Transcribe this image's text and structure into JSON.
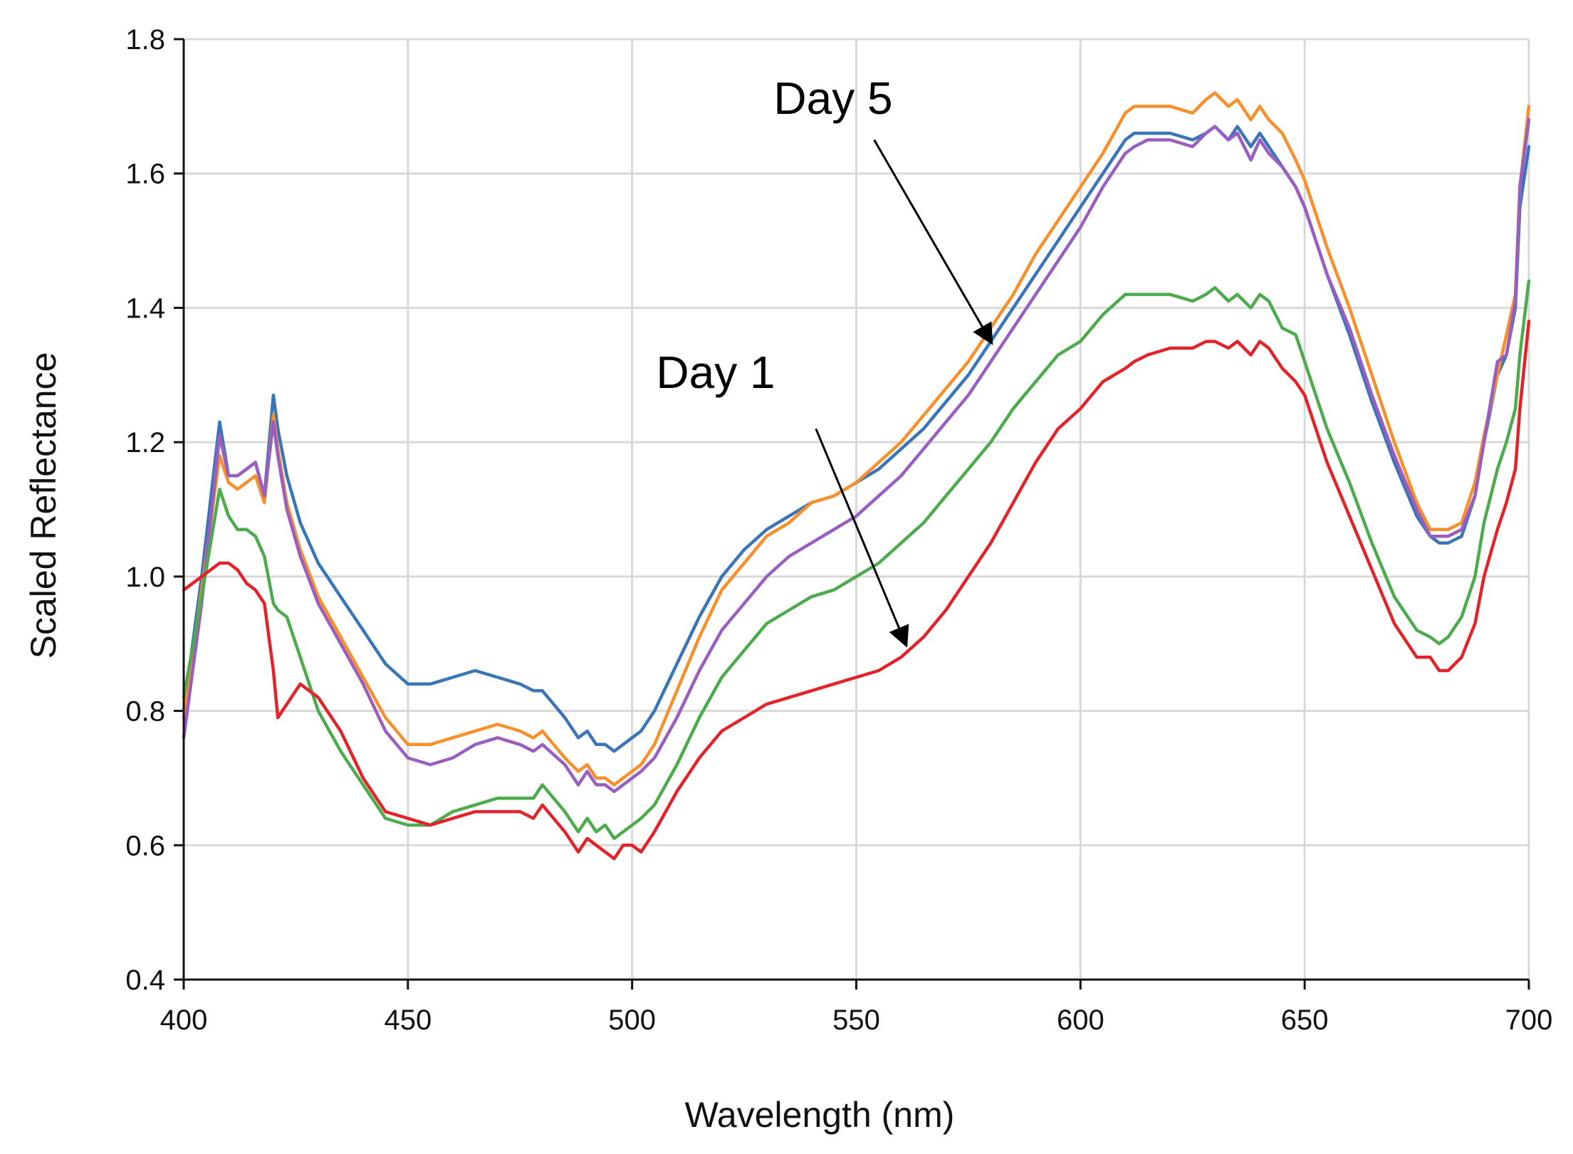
{
  "chart_data": {
    "type": "line",
    "title": "",
    "xlabel": "Wavelength (nm)",
    "ylabel": "Scaled Reflectance",
    "xlim": [
      400,
      700
    ],
    "ylim": [
      0.4,
      1.8
    ],
    "xticks": [
      400,
      450,
      500,
      550,
      600,
      650,
      700
    ],
    "yticks": [
      0.4,
      0.6,
      0.8,
      1.0,
      1.2,
      1.4,
      1.6,
      1.8
    ],
    "ytick_labels": [
      "0.4",
      "0.6",
      "0.8",
      "1.0",
      "1.2",
      "1.4",
      "1.6",
      "1.8"
    ],
    "grid": true,
    "legend": "none",
    "annotations": [
      {
        "text": "Day 5",
        "x_from": 554,
        "y_from": 1.65,
        "x_to": 580,
        "y_to": 1.35
      },
      {
        "text": "Day 1",
        "x_from": 541,
        "y_from": 1.22,
        "x_to": 561,
        "y_to": 0.9
      }
    ],
    "series": [
      {
        "name": "blue",
        "color": "#3a75b8",
        "x": [
          400,
          404,
          408,
          410,
          412,
          414,
          416,
          418,
          420,
          421,
          423,
          426,
          430,
          435,
          440,
          445,
          450,
          455,
          460,
          465,
          470,
          475,
          478,
          480,
          485,
          488,
          490,
          492,
          494,
          496,
          498,
          500,
          502,
          505,
          510,
          515,
          520,
          525,
          530,
          535,
          540,
          545,
          550,
          555,
          560,
          565,
          570,
          575,
          580,
          585,
          590,
          595,
          600,
          605,
          610,
          612,
          615,
          620,
          625,
          628,
          630,
          633,
          635,
          638,
          640,
          642,
          645,
          648,
          650,
          655,
          660,
          665,
          670,
          675,
          678,
          680,
          682,
          685,
          688,
          690,
          693,
          695,
          697,
          698,
          700
        ],
        "y": [
          0.8,
          1.0,
          1.23,
          1.15,
          1.15,
          1.16,
          1.17,
          1.12,
          1.27,
          1.22,
          1.15,
          1.08,
          1.02,
          0.97,
          0.92,
          0.87,
          0.84,
          0.84,
          0.85,
          0.86,
          0.85,
          0.84,
          0.83,
          0.83,
          0.79,
          0.76,
          0.77,
          0.75,
          0.75,
          0.74,
          0.75,
          0.76,
          0.77,
          0.8,
          0.87,
          0.94,
          1.0,
          1.04,
          1.07,
          1.09,
          1.11,
          1.12,
          1.14,
          1.16,
          1.19,
          1.22,
          1.26,
          1.3,
          1.35,
          1.4,
          1.45,
          1.5,
          1.55,
          1.6,
          1.65,
          1.66,
          1.66,
          1.66,
          1.65,
          1.66,
          1.67,
          1.65,
          1.67,
          1.64,
          1.66,
          1.64,
          1.61,
          1.58,
          1.55,
          1.45,
          1.36,
          1.26,
          1.17,
          1.09,
          1.06,
          1.05,
          1.05,
          1.06,
          1.12,
          1.2,
          1.3,
          1.33,
          1.4,
          1.55,
          1.64
        ]
      },
      {
        "name": "orange",
        "color": "#f7902b",
        "x": [
          400,
          404,
          408,
          410,
          412,
          414,
          416,
          418,
          420,
          421,
          423,
          426,
          430,
          435,
          440,
          445,
          450,
          455,
          460,
          465,
          470,
          475,
          478,
          480,
          485,
          488,
          490,
          492,
          494,
          496,
          498,
          500,
          502,
          505,
          510,
          515,
          520,
          525,
          530,
          535,
          540,
          545,
          550,
          555,
          560,
          565,
          570,
          575,
          580,
          585,
          590,
          595,
          600,
          605,
          610,
          612,
          615,
          620,
          625,
          628,
          630,
          633,
          635,
          638,
          640,
          642,
          645,
          648,
          650,
          655,
          660,
          665,
          670,
          675,
          678,
          680,
          682,
          685,
          688,
          690,
          693,
          695,
          697,
          698,
          700
        ],
        "y": [
          0.79,
          0.98,
          1.18,
          1.14,
          1.13,
          1.14,
          1.15,
          1.11,
          1.24,
          1.19,
          1.11,
          1.04,
          0.97,
          0.91,
          0.85,
          0.79,
          0.75,
          0.75,
          0.76,
          0.77,
          0.78,
          0.77,
          0.76,
          0.77,
          0.73,
          0.71,
          0.72,
          0.7,
          0.7,
          0.69,
          0.7,
          0.71,
          0.72,
          0.75,
          0.83,
          0.91,
          0.98,
          1.02,
          1.06,
          1.08,
          1.11,
          1.12,
          1.14,
          1.17,
          1.2,
          1.24,
          1.28,
          1.32,
          1.37,
          1.42,
          1.48,
          1.53,
          1.58,
          1.63,
          1.69,
          1.7,
          1.7,
          1.7,
          1.69,
          1.71,
          1.72,
          1.7,
          1.71,
          1.68,
          1.7,
          1.68,
          1.66,
          1.62,
          1.59,
          1.49,
          1.4,
          1.3,
          1.2,
          1.11,
          1.07,
          1.07,
          1.07,
          1.08,
          1.14,
          1.21,
          1.3,
          1.36,
          1.42,
          1.58,
          1.7
        ]
      },
      {
        "name": "purple",
        "color": "#9a5ec0",
        "x": [
          400,
          404,
          408,
          410,
          412,
          414,
          416,
          418,
          420,
          421,
          423,
          426,
          430,
          435,
          440,
          445,
          450,
          455,
          460,
          465,
          470,
          475,
          478,
          480,
          485,
          488,
          490,
          492,
          494,
          496,
          498,
          500,
          502,
          505,
          510,
          515,
          520,
          525,
          530,
          535,
          540,
          545,
          550,
          555,
          560,
          565,
          570,
          575,
          580,
          585,
          590,
          595,
          600,
          605,
          610,
          612,
          615,
          620,
          625,
          628,
          630,
          633,
          635,
          638,
          640,
          642,
          645,
          648,
          650,
          655,
          660,
          665,
          670,
          675,
          678,
          680,
          682,
          685,
          688,
          690,
          693,
          695,
          697,
          698,
          700
        ],
        "y": [
          0.76,
          0.96,
          1.21,
          1.15,
          1.15,
          1.16,
          1.17,
          1.12,
          1.23,
          1.18,
          1.1,
          1.03,
          0.96,
          0.9,
          0.84,
          0.77,
          0.73,
          0.72,
          0.73,
          0.75,
          0.76,
          0.75,
          0.74,
          0.75,
          0.72,
          0.69,
          0.71,
          0.69,
          0.69,
          0.68,
          0.69,
          0.7,
          0.71,
          0.73,
          0.79,
          0.86,
          0.92,
          0.96,
          1.0,
          1.03,
          1.05,
          1.07,
          1.09,
          1.12,
          1.15,
          1.19,
          1.23,
          1.27,
          1.32,
          1.37,
          1.42,
          1.47,
          1.52,
          1.58,
          1.63,
          1.64,
          1.65,
          1.65,
          1.64,
          1.66,
          1.67,
          1.65,
          1.66,
          1.62,
          1.65,
          1.63,
          1.61,
          1.58,
          1.55,
          1.45,
          1.37,
          1.27,
          1.18,
          1.1,
          1.06,
          1.06,
          1.06,
          1.07,
          1.12,
          1.2,
          1.32,
          1.33,
          1.41,
          1.58,
          1.68
        ]
      },
      {
        "name": "green",
        "color": "#4cab4c",
        "x": [
          400,
          404,
          408,
          410,
          412,
          414,
          416,
          418,
          420,
          421,
          423,
          426,
          430,
          435,
          440,
          445,
          450,
          455,
          460,
          465,
          470,
          475,
          478,
          480,
          485,
          488,
          490,
          492,
          494,
          496,
          498,
          500,
          502,
          505,
          510,
          515,
          520,
          525,
          530,
          535,
          540,
          545,
          550,
          555,
          560,
          565,
          570,
          575,
          580,
          585,
          590,
          595,
          600,
          605,
          610,
          612,
          615,
          620,
          625,
          628,
          630,
          633,
          635,
          638,
          640,
          642,
          645,
          648,
          650,
          655,
          660,
          665,
          670,
          675,
          678,
          680,
          682,
          685,
          688,
          690,
          693,
          695,
          697,
          698,
          700
        ],
        "y": [
          0.82,
          0.97,
          1.13,
          1.09,
          1.07,
          1.07,
          1.06,
          1.03,
          0.96,
          0.95,
          0.94,
          0.88,
          0.8,
          0.74,
          0.69,
          0.64,
          0.63,
          0.63,
          0.65,
          0.66,
          0.67,
          0.67,
          0.67,
          0.69,
          0.65,
          0.62,
          0.64,
          0.62,
          0.63,
          0.61,
          0.62,
          0.63,
          0.64,
          0.66,
          0.72,
          0.79,
          0.85,
          0.89,
          0.93,
          0.95,
          0.97,
          0.98,
          1.0,
          1.02,
          1.05,
          1.08,
          1.12,
          1.16,
          1.2,
          1.25,
          1.29,
          1.33,
          1.35,
          1.39,
          1.42,
          1.42,
          1.42,
          1.42,
          1.41,
          1.42,
          1.43,
          1.41,
          1.42,
          1.4,
          1.42,
          1.41,
          1.37,
          1.36,
          1.32,
          1.22,
          1.14,
          1.05,
          0.97,
          0.92,
          0.91,
          0.9,
          0.91,
          0.94,
          1.0,
          1.08,
          1.16,
          1.2,
          1.25,
          1.33,
          1.44
        ]
      },
      {
        "name": "red",
        "color": "#e2242a",
        "x": [
          400,
          404,
          408,
          410,
          412,
          414,
          416,
          418,
          420,
          421,
          423,
          426,
          430,
          435,
          440,
          445,
          450,
          455,
          460,
          465,
          470,
          475,
          478,
          480,
          485,
          488,
          490,
          492,
          494,
          496,
          498,
          500,
          502,
          505,
          510,
          515,
          520,
          525,
          530,
          535,
          540,
          545,
          550,
          555,
          560,
          565,
          570,
          575,
          580,
          585,
          590,
          595,
          600,
          605,
          610,
          612,
          615,
          620,
          625,
          628,
          630,
          633,
          635,
          638,
          640,
          642,
          645,
          648,
          650,
          655,
          660,
          665,
          670,
          675,
          678,
          680,
          682,
          685,
          688,
          690,
          693,
          695,
          697,
          698,
          700
        ],
        "y": [
          0.98,
          1.0,
          1.02,
          1.02,
          1.01,
          0.99,
          0.98,
          0.96,
          0.86,
          0.79,
          0.81,
          0.84,
          0.82,
          0.77,
          0.7,
          0.65,
          0.64,
          0.63,
          0.64,
          0.65,
          0.65,
          0.65,
          0.64,
          0.66,
          0.62,
          0.59,
          0.61,
          0.6,
          0.59,
          0.58,
          0.6,
          0.6,
          0.59,
          0.62,
          0.68,
          0.73,
          0.77,
          0.79,
          0.81,
          0.82,
          0.83,
          0.84,
          0.85,
          0.86,
          0.88,
          0.91,
          0.95,
          1.0,
          1.05,
          1.11,
          1.17,
          1.22,
          1.25,
          1.29,
          1.31,
          1.32,
          1.33,
          1.34,
          1.34,
          1.35,
          1.35,
          1.34,
          1.35,
          1.33,
          1.35,
          1.34,
          1.31,
          1.29,
          1.27,
          1.17,
          1.09,
          1.01,
          0.93,
          0.88,
          0.88,
          0.86,
          0.86,
          0.88,
          0.93,
          1.0,
          1.07,
          1.11,
          1.16,
          1.25,
          1.38
        ]
      }
    ]
  }
}
